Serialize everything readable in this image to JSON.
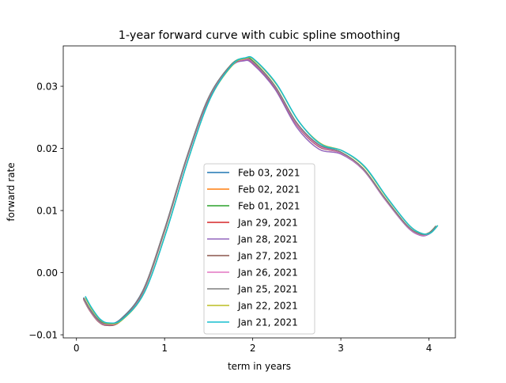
{
  "chart_data": {
    "type": "line",
    "title": "1-year forward curve with cubic spline smoothing",
    "xlabel": "term in years",
    "ylabel": "forward rate",
    "xlim": [
      -0.15,
      4.3
    ],
    "ylim": [
      -0.0105,
      0.0365
    ],
    "xticks": [
      0,
      1,
      2,
      3,
      4
    ],
    "xtick_labels": [
      "0",
      "1",
      "2",
      "3",
      "4"
    ],
    "yticks": [
      -0.01,
      0.0,
      0.01,
      0.02,
      0.03
    ],
    "ytick_labels": [
      "−0.01",
      "0.00",
      "0.01",
      "0.02",
      "0.03"
    ],
    "grid": false,
    "legend_position": "lower-center",
    "x": [
      0.08,
      0.15,
      0.25,
      0.35,
      0.5,
      0.75,
      1.0,
      1.25,
      1.5,
      1.75,
      1.9,
      2.0,
      2.25,
      2.5,
      2.75,
      3.0,
      3.25,
      3.5,
      3.75,
      3.9,
      4.0,
      4.08
    ],
    "series": [
      {
        "name": "Feb 03, 2021",
        "color": "#1f77b4",
        "x_offset": 0.0,
        "values": [
          -0.004,
          -0.0058,
          -0.0076,
          -0.0082,
          -0.0075,
          -0.003,
          0.007,
          0.0185,
          0.0282,
          0.0334,
          0.0344,
          0.034,
          0.03,
          0.024,
          0.0205,
          0.0194,
          0.0168,
          0.012,
          0.0076,
          0.0062,
          0.0064,
          0.0075
        ]
      },
      {
        "name": "Feb 02, 2021",
        "color": "#ff7f0e",
        "x_offset": 0.0,
        "values": [
          -0.0041,
          -0.0059,
          -0.0077,
          -0.0083,
          -0.0076,
          -0.0031,
          0.0069,
          0.0184,
          0.0281,
          0.0334,
          0.0344,
          0.034,
          0.03,
          0.024,
          0.0205,
          0.0194,
          0.0168,
          0.012,
          0.0076,
          0.0062,
          0.0064,
          0.0075
        ]
      },
      {
        "name": "Feb 01, 2021",
        "color": "#2ca02c",
        "x_offset": 0.0,
        "values": [
          -0.0042,
          -0.006,
          -0.0078,
          -0.0084,
          -0.0077,
          -0.0032,
          0.0068,
          0.0184,
          0.0281,
          0.0334,
          0.0345,
          0.0341,
          0.0301,
          0.0241,
          0.0206,
          0.0194,
          0.0168,
          0.012,
          0.0076,
          0.0062,
          0.0064,
          0.0075
        ]
      },
      {
        "name": "Jan 29, 2021",
        "color": "#d62728",
        "x_offset": 0.0,
        "values": [
          -0.0041,
          -0.0059,
          -0.0077,
          -0.0083,
          -0.0076,
          -0.0031,
          0.0069,
          0.0184,
          0.028,
          0.0332,
          0.0342,
          0.0338,
          0.0299,
          0.0238,
          0.0203,
          0.0193,
          0.0167,
          0.0119,
          0.0075,
          0.0061,
          0.0063,
          0.0074
        ]
      },
      {
        "name": "Jan 28, 2021",
        "color": "#9467bd",
        "x_offset": 0.0,
        "values": [
          -0.0042,
          -0.006,
          -0.0078,
          -0.0084,
          -0.0077,
          -0.0032,
          0.0068,
          0.0183,
          0.0279,
          0.0331,
          0.0341,
          0.0336,
          0.0296,
          0.0234,
          0.0199,
          0.0191,
          0.0166,
          0.0118,
          0.0074,
          0.006,
          0.0062,
          0.0073
        ]
      },
      {
        "name": "Jan 27, 2021",
        "color": "#8c564b",
        "x_offset": 0.0,
        "values": [
          -0.0043,
          -0.0061,
          -0.0079,
          -0.0085,
          -0.0078,
          -0.0033,
          0.0067,
          0.0183,
          0.028,
          0.0332,
          0.0343,
          0.0339,
          0.0299,
          0.0238,
          0.0203,
          0.0193,
          0.0167,
          0.0119,
          0.0075,
          0.0061,
          0.0063,
          0.0074
        ]
      },
      {
        "name": "Jan 26, 2021",
        "color": "#e377c2",
        "x_offset": 0.0,
        "values": [
          -0.0042,
          -0.006,
          -0.0078,
          -0.0084,
          -0.0077,
          -0.0032,
          0.0068,
          0.0184,
          0.0281,
          0.0333,
          0.0343,
          0.0339,
          0.03,
          0.0239,
          0.0204,
          0.0193,
          0.0167,
          0.0119,
          0.0075,
          0.0061,
          0.0063,
          0.0074
        ]
      },
      {
        "name": "Jan 25, 2021",
        "color": "#7f7f7f",
        "x_offset": 0.0,
        "values": [
          -0.0041,
          -0.0059,
          -0.0077,
          -0.0083,
          -0.0076,
          -0.0031,
          0.0069,
          0.0185,
          0.0282,
          0.0334,
          0.0344,
          0.034,
          0.0301,
          0.0241,
          0.0206,
          0.0194,
          0.0168,
          0.012,
          0.0076,
          0.0062,
          0.0064,
          0.0075
        ]
      },
      {
        "name": "Jan 22, 2021",
        "color": "#bcbd22",
        "x_offset": 0.02,
        "values": [
          -0.004,
          -0.0058,
          -0.0076,
          -0.0082,
          -0.0076,
          -0.0032,
          0.0067,
          0.0183,
          0.0281,
          0.0334,
          0.0345,
          0.0342,
          0.0303,
          0.0244,
          0.0208,
          0.0196,
          0.017,
          0.0121,
          0.0077,
          0.0063,
          0.0064,
          0.0076
        ]
      },
      {
        "name": "Jan 21, 2021",
        "color": "#17becf",
        "x_offset": 0.02,
        "values": [
          -0.0038,
          -0.0056,
          -0.0075,
          -0.0081,
          -0.0075,
          -0.0032,
          0.0066,
          0.0183,
          0.0281,
          0.0335,
          0.0346,
          0.0343,
          0.0304,
          0.0244,
          0.0207,
          0.0196,
          0.0171,
          0.0122,
          0.0077,
          0.0063,
          0.0064,
          0.0076
        ]
      }
    ]
  }
}
